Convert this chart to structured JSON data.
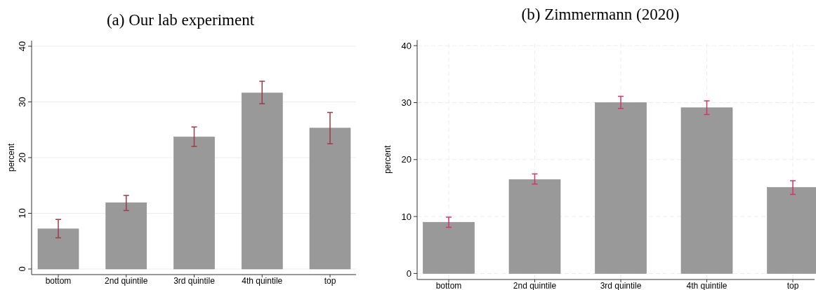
{
  "chart_data": [
    {
      "type": "bar",
      "title": "(a) Our lab experiment",
      "ylabel": "percent",
      "categories": [
        "bottom",
        "2nd quintile",
        "3rd quintile",
        "4th quintile",
        "top"
      ],
      "values": [
        7.2,
        11.9,
        23.7,
        31.6,
        25.3
      ],
      "color": "#999999",
      "errors": [
        [
          5.6,
          8.9
        ],
        [
          10.5,
          13.2
        ],
        [
          22.0,
          25.5
        ],
        [
          29.7,
          33.7
        ],
        [
          22.5,
          28.1
        ]
      ],
      "ylim": [
        0,
        40
      ],
      "yticks": [
        0,
        10,
        20,
        30,
        40
      ],
      "grid": "y"
    },
    {
      "type": "bar",
      "title": "(b) Zimmermann (2020)",
      "ylabel": "percent",
      "categories": [
        "bottom",
        "2nd quintile",
        "3rd quintile",
        "4th quintile",
        "top"
      ],
      "values": [
        9.0,
        16.5,
        30.0,
        29.1,
        15.1
      ],
      "color": "#999999",
      "errors": [
        [
          8.1,
          9.9
        ],
        [
          15.7,
          17.5
        ],
        [
          29.0,
          31.1
        ],
        [
          27.9,
          30.3
        ],
        [
          13.9,
          16.3
        ]
      ],
      "ylim": [
        0,
        40
      ],
      "yticks": [
        0,
        10,
        20,
        30,
        40
      ],
      "grid": true
    }
  ]
}
